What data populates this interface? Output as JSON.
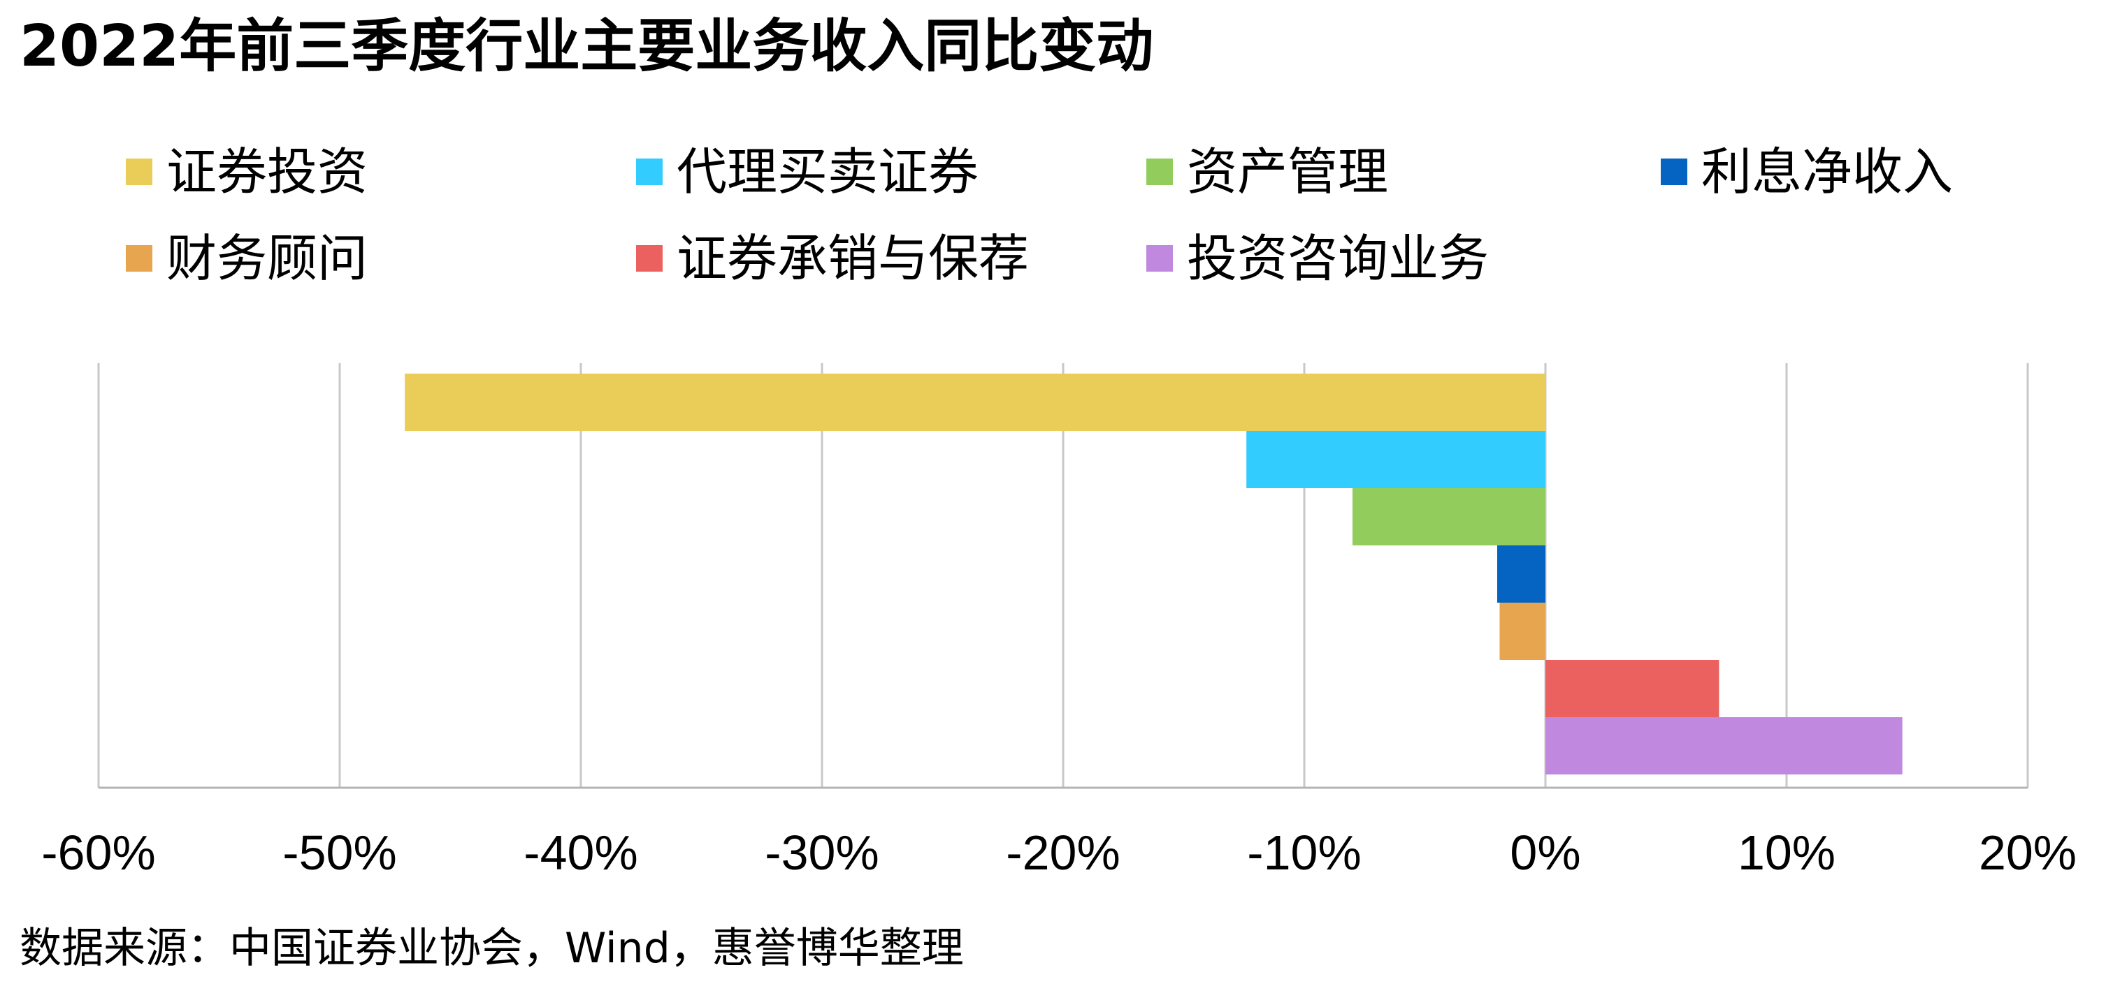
{
  "chart_data": {
    "type": "bar",
    "orientation": "horizontal",
    "title": "2022年前三季度行业主要业务收入同比变动",
    "series": [
      {
        "name": "证券投资",
        "value": -47.3,
        "color": "#E9CD58"
      },
      {
        "name": "代理买卖证券",
        "value": -12.4,
        "color": "#33CCFF"
      },
      {
        "name": "资产管理",
        "value": -8.0,
        "color": "#92CC5C"
      },
      {
        "name": "利息净收入",
        "value": -2.0,
        "color": "#0563C1"
      },
      {
        "name": "财务顾问",
        "value": -1.9,
        "color": "#E8A550"
      },
      {
        "name": "证券承销与保荐",
        "value": 7.2,
        "color": "#EB615F"
      },
      {
        "name": "投资咨询业务",
        "value": 14.8,
        "color": "#C088DF"
      }
    ],
    "xlim": [
      -60,
      20
    ],
    "xticks": [
      -60,
      -50,
      -40,
      -30,
      -20,
      -10,
      0,
      10,
      20
    ],
    "xtick_labels": [
      "-60%",
      "-50%",
      "-40%",
      "-30%",
      "-20%",
      "-10%",
      "0%",
      "10%",
      "20%"
    ],
    "grid": true,
    "legend_position": "top"
  },
  "source_note": "数据来源：中国证券业协会，Wind，惠誉博华整理"
}
